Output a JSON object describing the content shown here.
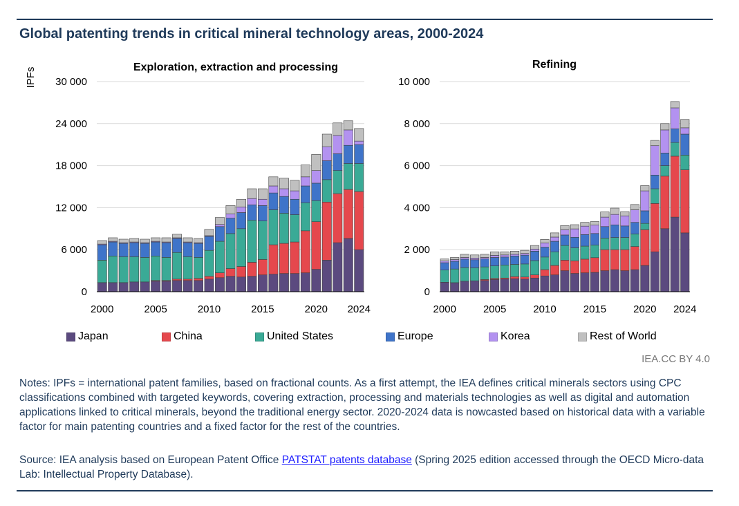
{
  "figure": {
    "title": "Global patenting trends in critical mineral technology areas, 2000-2024",
    "credit": "IEA.CC BY 4.0",
    "notes": "Notes: IPFs = international patent families, based on fractional counts. As a first attempt, the IEA defines critical minerals sectors using CPC classifications combined with targeted keywords, covering extraction, processing and materials technologies as well as digital and automation applications linked to critical minerals, beyond the traditional energy sector. 2020-2024 data is nowcasted based on historical data with a variable factor for main patenting countries and a fixed factor for the rest of the countries.",
    "source_prefix": "Source: IEA analysis based on European Patent Office ",
    "source_link": "PATSTAT patents database",
    "source_suffix": " (Spring 2025 edition accessed through the OECD Micro-data Lab: Intellectual Property Database)."
  },
  "legend": [
    {
      "name": "Japan",
      "color": "#5b4a7f"
    },
    {
      "name": "China",
      "color": "#e5484d"
    },
    {
      "name": "United States",
      "color": "#3aaa96"
    },
    {
      "name": "Europe",
      "color": "#3f74c9"
    },
    {
      "name": "Korea",
      "color": "#b392f0"
    },
    {
      "name": "Rest of World",
      "color": "#c0c0c0"
    }
  ],
  "chart_data": [
    {
      "type": "bar",
      "stacked": true,
      "title": "Exploration, extraction and processing",
      "ylabel": "IPFs",
      "ylim": [
        0,
        30000
      ],
      "yticks": [
        0,
        6000,
        12000,
        18000,
        24000,
        30000
      ],
      "ytick_labels": [
        "0",
        "6 000",
        "12 000",
        "18 000",
        "24 000",
        "30 000"
      ],
      "xtick_labels": [
        "2000",
        "2005",
        "2010",
        "2015",
        "2020",
        "2024"
      ],
      "categories": [
        "2000",
        "2001",
        "2002",
        "2003",
        "2004",
        "2005",
        "2006",
        "2007",
        "2008",
        "2009",
        "2010",
        "2011",
        "2012",
        "2013",
        "2014",
        "2015",
        "2016",
        "2017",
        "2018",
        "2019",
        "2020",
        "2021",
        "2022",
        "2023",
        "2024"
      ],
      "series": [
        {
          "name": "Japan",
          "values": [
            1300,
            1300,
            1300,
            1400,
            1400,
            1500,
            1500,
            1600,
            1600,
            1600,
            1800,
            2000,
            2200,
            2100,
            2200,
            2400,
            2500,
            2600,
            2600,
            2700,
            3200,
            4500,
            7000,
            7600,
            6000
          ]
        },
        {
          "name": "China",
          "values": [
            0,
            0,
            0,
            0,
            0,
            100,
            100,
            200,
            200,
            300,
            400,
            700,
            1100,
            1500,
            2000,
            2200,
            4200,
            4300,
            4500,
            6000,
            6800,
            8300,
            7000,
            7000,
            8300
          ]
        },
        {
          "name": "United States",
          "values": [
            3200,
            3800,
            3700,
            3600,
            3500,
            3500,
            3300,
            3800,
            3200,
            3000,
            3700,
            4500,
            5000,
            5400,
            6000,
            5500,
            5000,
            4300,
            3900,
            4000,
            3000,
            3200,
            3300,
            3700,
            4000
          ]
        },
        {
          "name": "Europe",
          "values": [
            2200,
            2000,
            1900,
            2000,
            2000,
            2000,
            2100,
            2000,
            2000,
            2000,
            2000,
            2100,
            2200,
            2300,
            2200,
            2200,
            2400,
            2400,
            2200,
            2400,
            2500,
            2700,
            2400,
            2600,
            2700
          ]
        },
        {
          "name": "Korea",
          "values": [
            100,
            100,
            100,
            100,
            100,
            100,
            100,
            100,
            100,
            100,
            100,
            300,
            600,
            800,
            900,
            900,
            1000,
            1100,
            1200,
            1300,
            1800,
            2000,
            2600,
            2200,
            500
          ]
        },
        {
          "name": "Rest of World",
          "values": [
            500,
            500,
            500,
            500,
            500,
            500,
            600,
            500,
            600,
            600,
            900,
            1000,
            1200,
            1100,
            1400,
            1500,
            1300,
            1500,
            1500,
            1700,
            2300,
            1800,
            1800,
            1300,
            1800
          ]
        }
      ]
    },
    {
      "type": "bar",
      "stacked": true,
      "title": "Refining",
      "ylabel": "",
      "ylim": [
        0,
        10000
      ],
      "yticks": [
        0,
        2000,
        4000,
        6000,
        8000,
        10000
      ],
      "ytick_labels": [
        "0",
        "2 000",
        "4 000",
        "6 000",
        "8 000",
        "10 000"
      ],
      "xtick_labels": [
        "2000",
        "2005",
        "2010",
        "2015",
        "2020",
        "2024"
      ],
      "categories": [
        "2000",
        "2001",
        "2002",
        "2003",
        "2004",
        "2005",
        "2006",
        "2007",
        "2008",
        "2009",
        "2010",
        "2011",
        "2012",
        "2013",
        "2014",
        "2015",
        "2016",
        "2017",
        "2018",
        "2019",
        "2020",
        "2021",
        "2022",
        "2023",
        "2024"
      ],
      "series": [
        {
          "name": "Japan",
          "values": [
            450,
            430,
            500,
            520,
            530,
            580,
            600,
            620,
            600,
            650,
            750,
            800,
            1000,
            870,
            900,
            920,
            1000,
            1050,
            1000,
            1050,
            1250,
            1900,
            3000,
            3550,
            2800
          ]
        },
        {
          "name": "China",
          "values": [
            0,
            0,
            0,
            0,
            50,
            50,
            50,
            100,
            100,
            150,
            300,
            450,
            500,
            600,
            650,
            700,
            1000,
            950,
            1000,
            1100,
            1700,
            2300,
            2500,
            2900,
            3000
          ]
        },
        {
          "name": "United States",
          "values": [
            580,
            650,
            650,
            620,
            600,
            600,
            620,
            580,
            620,
            680,
            600,
            650,
            700,
            620,
            620,
            600,
            550,
            580,
            580,
            600,
            300,
            700,
            500,
            650,
            700
          ]
        },
        {
          "name": "Europe",
          "values": [
            350,
            370,
            400,
            380,
            380,
            400,
            380,
            400,
            420,
            450,
            470,
            500,
            500,
            500,
            550,
            550,
            550,
            600,
            550,
            550,
            600,
            650,
            600,
            650,
            1000
          ]
        },
        {
          "name": "Korea",
          "values": [
            80,
            80,
            80,
            80,
            70,
            100,
            100,
            80,
            80,
            100,
            200,
            200,
            250,
            400,
            400,
            400,
            450,
            500,
            480,
            600,
            950,
            1400,
            1100,
            1000,
            300
          ]
        },
        {
          "name": "Rest of World",
          "values": [
            100,
            100,
            150,
            150,
            150,
            170,
            150,
            150,
            150,
            170,
            170,
            200,
            200,
            200,
            180,
            170,
            250,
            300,
            200,
            250,
            250,
            250,
            300,
            300,
            400
          ]
        }
      ]
    }
  ]
}
